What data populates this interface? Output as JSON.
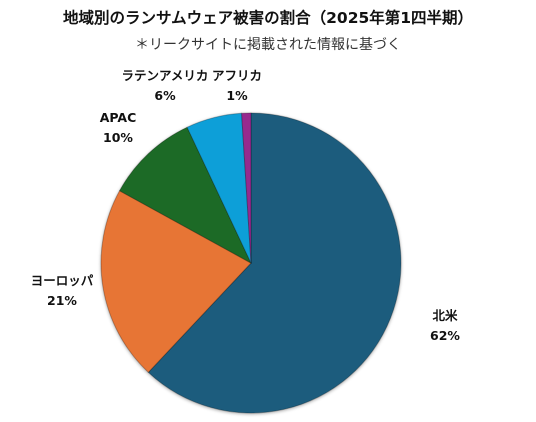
{
  "chart_data": {
    "type": "pie",
    "title": "地域別のランサムウェア被害の割合（2025年第1四半期）",
    "subtitle": "＊リークサイトに掲載された情報に基づく",
    "slices": [
      {
        "label": "北米",
        "value": 62,
        "display": "62%",
        "color": "#1b5c7d"
      },
      {
        "label": "ヨーロッパ",
        "value": 21,
        "display": "21%",
        "color": "#e77434"
      },
      {
        "label": "APAC",
        "value": 10,
        "display": "10%",
        "color": "#1c6a27"
      },
      {
        "label": "ラテンアメリカ",
        "value": 6,
        "display": "6%",
        "color": "#0f9fd8"
      },
      {
        "label": "アフリカ",
        "value": 1,
        "display": "1%",
        "color": "#962a8e"
      }
    ]
  }
}
